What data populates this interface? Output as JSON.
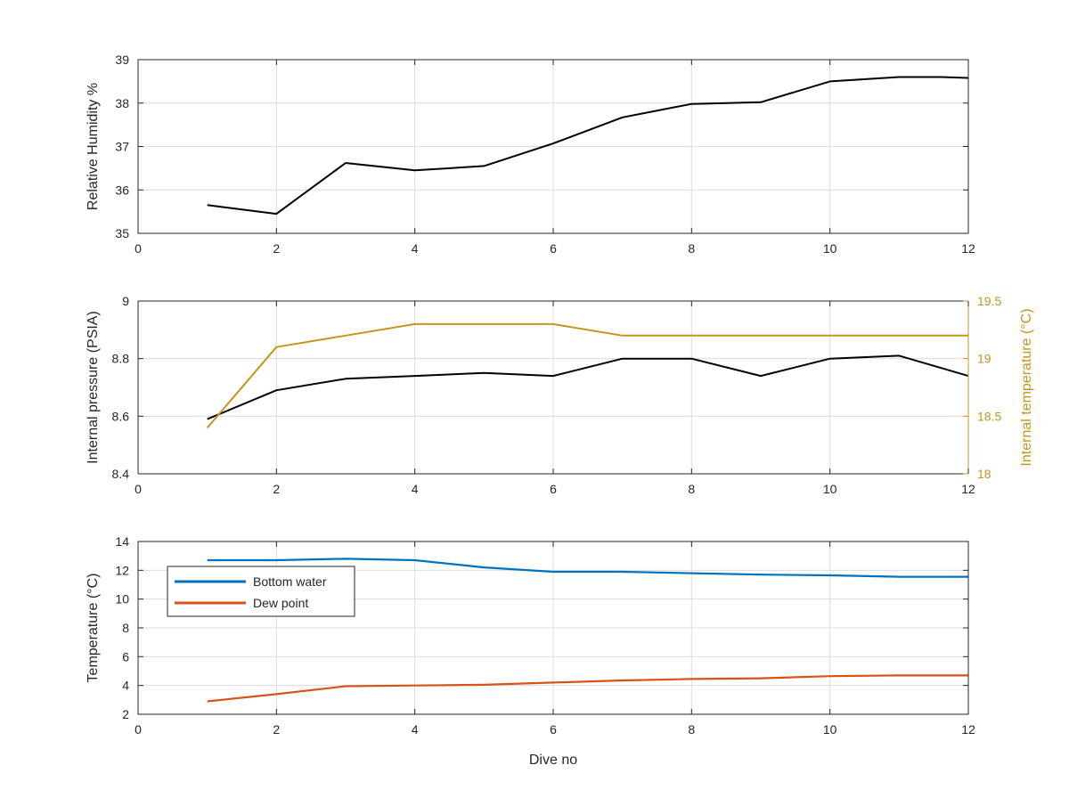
{
  "chart_data": [
    {
      "type": "line",
      "title": "",
      "xlabel": "",
      "ylabel": "Relative Humidity %",
      "xlim": [
        0,
        12
      ],
      "ylim": [
        35,
        39
      ],
      "x_ticks": [
        0,
        2,
        4,
        6,
        8,
        10,
        12
      ],
      "y_ticks": [
        35,
        36,
        37,
        38,
        39
      ],
      "grid": true,
      "series": [
        {
          "color": "#000000",
          "x": [
            1,
            2,
            3,
            4,
            5,
            6,
            7,
            8,
            9,
            10,
            11,
            11.6,
            12
          ],
          "y": [
            35.65,
            35.45,
            36.62,
            36.45,
            36.55,
            37.07,
            37.67,
            37.98,
            38.02,
            38.5,
            38.6,
            38.6,
            38.58
          ]
        }
      ]
    },
    {
      "type": "line",
      "title": "",
      "xlabel": "",
      "ylabel": "Internal pressure (PSIA)",
      "y2label": "Internal temperature (°C)",
      "xlim": [
        0,
        12
      ],
      "ylim": [
        8.4,
        9
      ],
      "y2lim": [
        18,
        19.5
      ],
      "x_ticks": [
        0,
        2,
        4,
        6,
        8,
        10,
        12
      ],
      "y_ticks": [
        8.4,
        8.6,
        8.8,
        9
      ],
      "y2_ticks": [
        18,
        18.5,
        19,
        19.5
      ],
      "grid": true,
      "y2_color": "#C4961E",
      "series": [
        {
          "axis": "left",
          "color": "#000000",
          "x": [
            1,
            2,
            3,
            4,
            5,
            6,
            7,
            8,
            9,
            10,
            11,
            12
          ],
          "y": [
            8.59,
            8.69,
            8.73,
            8.74,
            8.75,
            8.74,
            8.8,
            8.8,
            8.74,
            8.8,
            8.81,
            8.74
          ]
        },
        {
          "axis": "right",
          "color": "#C4961E",
          "x": [
            1,
            2,
            3,
            4,
            5,
            6,
            7,
            8,
            9,
            10,
            11,
            12
          ],
          "y": [
            18.4,
            19.1,
            19.2,
            19.3,
            19.3,
            19.3,
            19.2,
            19.2,
            19.2,
            19.2,
            19.2,
            19.2
          ]
        }
      ]
    },
    {
      "type": "line",
      "title": "",
      "xlabel": "Dive no",
      "ylabel": "Temperature (°C)",
      "xlim": [
        0,
        12
      ],
      "ylim": [
        2,
        14
      ],
      "x_ticks": [
        0,
        2,
        4,
        6,
        8,
        10,
        12
      ],
      "y_ticks": [
        2,
        4,
        6,
        8,
        10,
        12,
        14
      ],
      "grid": true,
      "legend": "top-left",
      "series": [
        {
          "name": "Bottom water",
          "color": "#0072BD",
          "x": [
            1,
            2,
            3,
            4,
            5,
            6,
            7,
            8,
            9,
            10,
            11,
            12
          ],
          "y": [
            12.7,
            12.7,
            12.8,
            12.7,
            12.2,
            11.9,
            11.9,
            11.8,
            11.7,
            11.65,
            11.55,
            11.55
          ]
        },
        {
          "name": "Dew point",
          "color": "#D95319",
          "x": [
            1,
            2,
            3,
            4,
            5,
            6,
            7,
            8,
            9,
            10,
            11,
            12
          ],
          "y": [
            2.9,
            3.4,
            3.95,
            4.0,
            4.05,
            4.2,
            4.35,
            4.45,
            4.5,
            4.65,
            4.7,
            4.7
          ]
        }
      ]
    }
  ]
}
